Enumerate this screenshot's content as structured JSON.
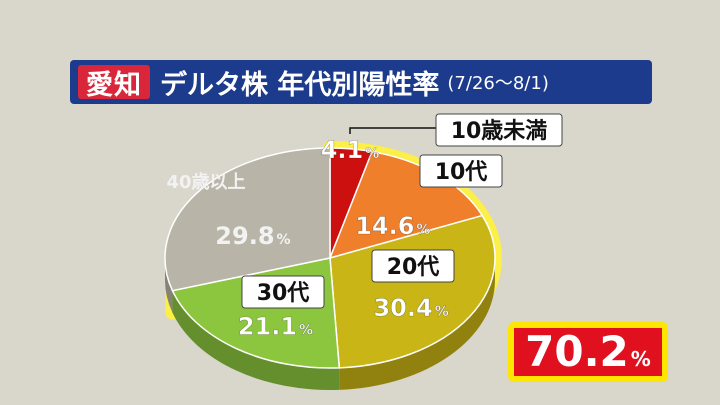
{
  "header": {
    "prefecture": "愛知",
    "title": "デルタ株 年代別陽性率",
    "period": "(7/26〜8/1)"
  },
  "chart_data": {
    "type": "pie",
    "title": "デルタ株 年代別陽性率",
    "slices": [
      {
        "label": "10歳未満",
        "value": 4.1,
        "display": "4.1",
        "color": "#cc1010"
      },
      {
        "label": "10代",
        "value": 14.6,
        "display": "14.6",
        "color": "#f07f2c"
      },
      {
        "label": "20代",
        "value": 30.4,
        "display": "30.4",
        "color": "#c9b515"
      },
      {
        "label": "30代",
        "value": 21.1,
        "display": "21.1",
        "color": "#8cc63e"
      },
      {
        "label": "40歳以上",
        "value": 29.8,
        "display": "29.8",
        "color": "#b8b5a8"
      }
    ],
    "unit": "%",
    "highlight_total": "70.2"
  }
}
